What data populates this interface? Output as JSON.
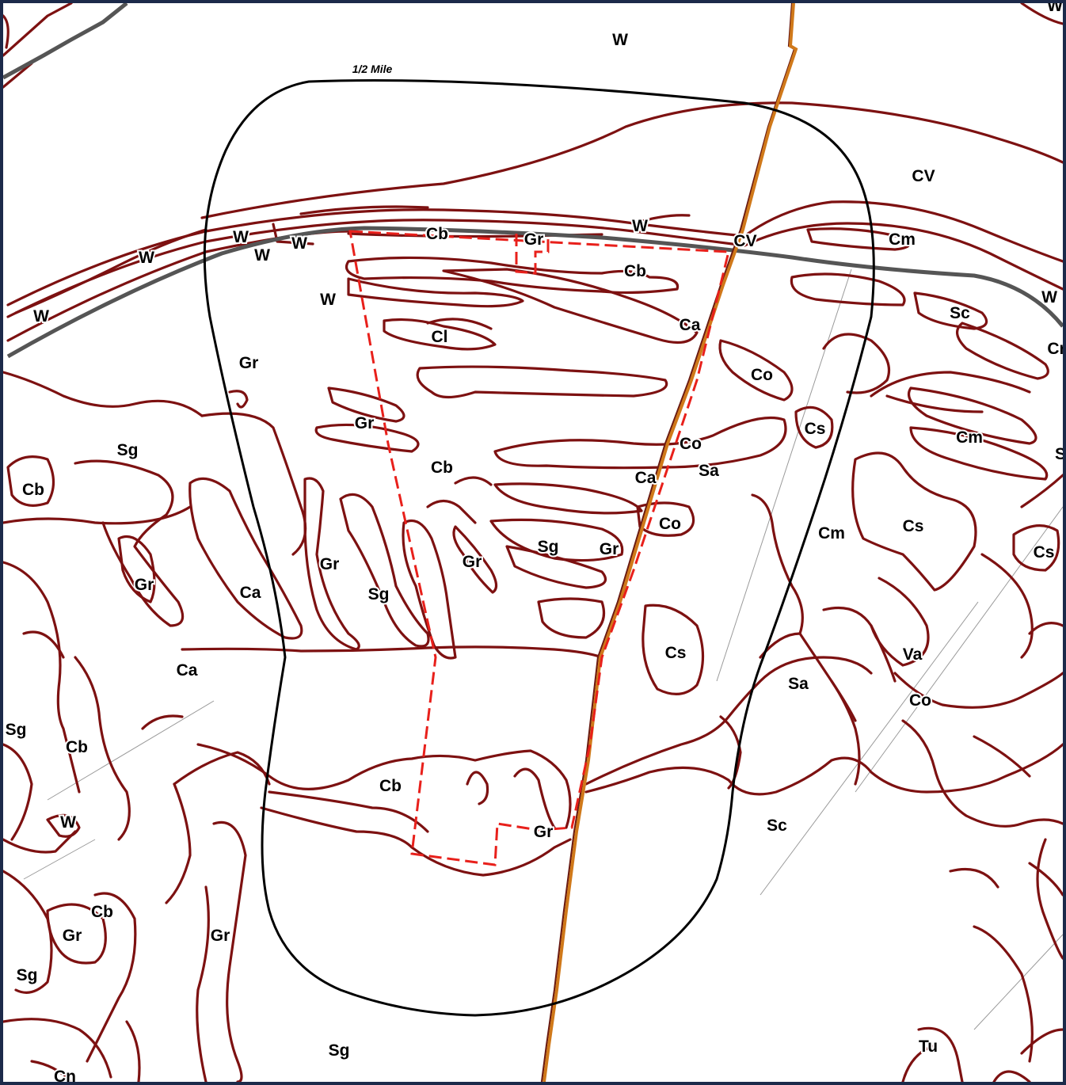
{
  "buffer_label": "1/2 Mile",
  "colors": {
    "soil_boundary": "#7d1111",
    "road": "#555555",
    "buffer": "#000000",
    "county_line": "#d0791a",
    "site_boundary": "#e8201b",
    "frame": "#1c2a4a"
  },
  "soil_units": [
    "W",
    "W",
    "W",
    "W",
    "W",
    "W",
    "W",
    "W",
    "W",
    "CV",
    "CV",
    "Cb",
    "Gr",
    "Cb",
    "Cm",
    "Ca",
    "Sc",
    "W",
    "Cl",
    "Co",
    "Cr",
    "Gr",
    "Cs",
    "Cm",
    "Co",
    "Sa",
    "Cb",
    "Sg",
    "Cb",
    "Ca",
    "Co",
    "S",
    "Cm",
    "Cs",
    "Gr",
    "Sg",
    "Gr",
    "Cs",
    "Gr",
    "Ca",
    "Sg",
    "Gr",
    "Gr",
    "Cs",
    "Va",
    "Ca",
    "Sa",
    "Co",
    "Sg",
    "Cb",
    "Cb",
    "Sc",
    "W",
    "Gr",
    "Cb",
    "Gr",
    "Gr",
    "Sg",
    "Sg",
    "Tu",
    "Cn"
  ]
}
